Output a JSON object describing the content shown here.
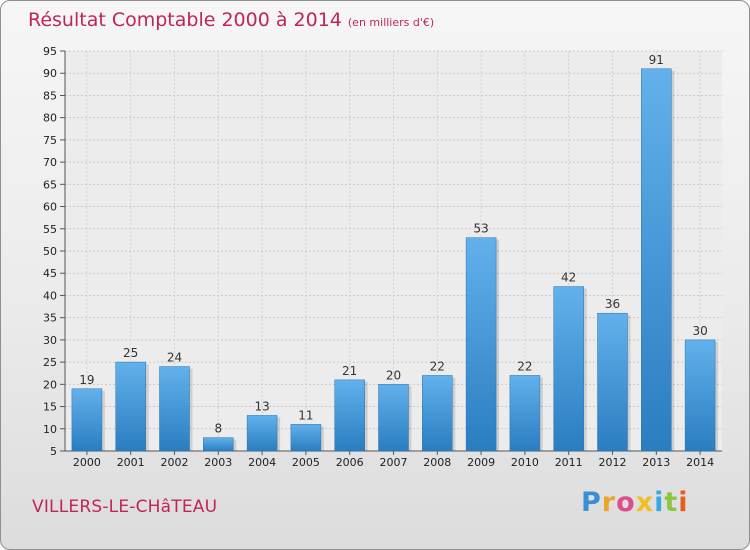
{
  "header": {
    "title": "Résultat Comptable 2000 à 2014",
    "unit": "(en milliers d'€)"
  },
  "footer": {
    "town": "VILLERS-LE-CHâTEAU",
    "logo_text": "Proxiti"
  },
  "colors": {
    "title": "#c0245c",
    "bar_light": "#62b1ec",
    "bar_dark": "#2a7dc0"
  },
  "chart_data": {
    "type": "bar",
    "title": "Résultat Comptable 2000 à 2014",
    "subtitle": "(en milliers d'€)",
    "xlabel": "",
    "ylabel": "",
    "categories": [
      "2000",
      "2001",
      "2002",
      "2003",
      "2004",
      "2005",
      "2006",
      "2007",
      "2008",
      "2009",
      "2010",
      "2011",
      "2012",
      "2013",
      "2014"
    ],
    "values": [
      19,
      25,
      24,
      8,
      13,
      11,
      21,
      20,
      22,
      53,
      22,
      42,
      36,
      91,
      30
    ],
    "ylim": [
      5,
      95
    ],
    "yticks": [
      5,
      10,
      15,
      20,
      25,
      30,
      35,
      40,
      45,
      50,
      55,
      60,
      65,
      70,
      75,
      80,
      85,
      90,
      95
    ],
    "grid": true
  }
}
